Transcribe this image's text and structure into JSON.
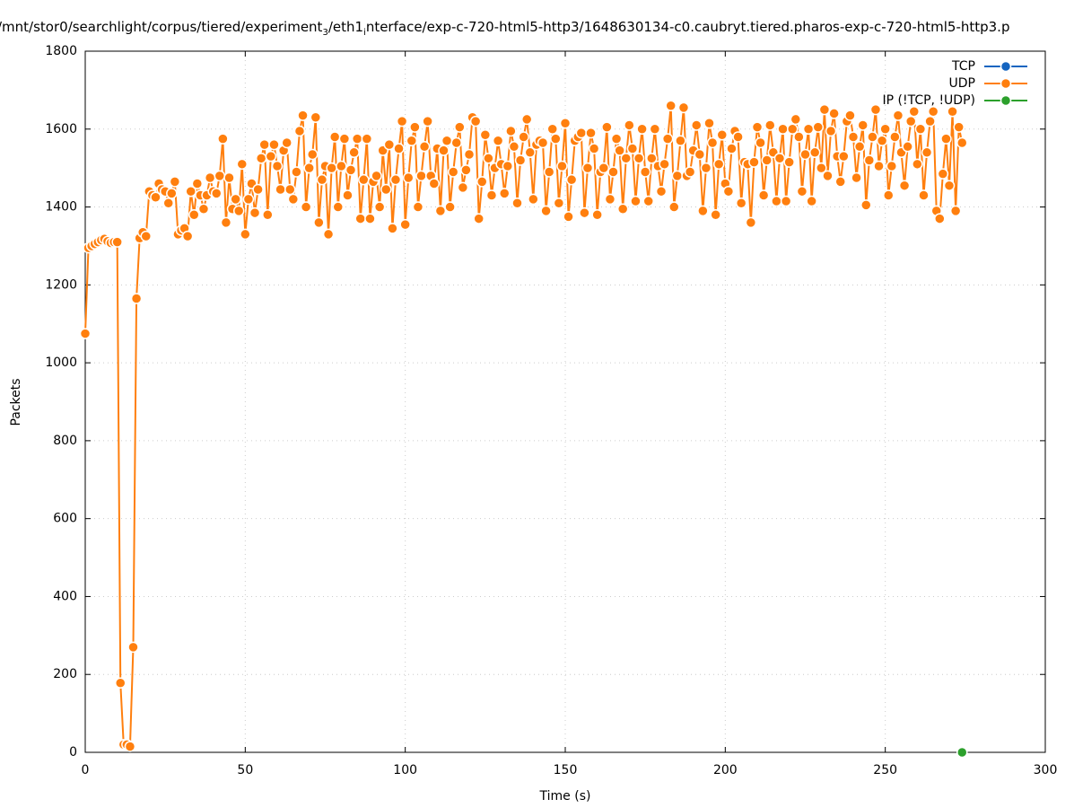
{
  "chart_data": {
    "type": "line",
    "title": [
      {
        "text": "/mnt/stor0/searchlight/corpus/tiered/experiment",
        "sub": false
      },
      {
        "text": "3",
        "sub": true
      },
      {
        "text": "/eth1",
        "sub": false
      },
      {
        "text": "i",
        "sub": true
      },
      {
        "text": "nterface/exp-c-720-html5-http3/1648630134-c0.caubryt.tiered.pharos-exp-c-720-html5-http3.p",
        "sub": false
      }
    ],
    "x_label": "Time (s)",
    "y_label": "Packets",
    "xlim": [
      0,
      300
    ],
    "xticks": [
      0,
      50,
      100,
      150,
      200,
      250,
      300
    ],
    "ylim": [
      0,
      1800
    ],
    "yticks": [
      0,
      200,
      400,
      600,
      800,
      1000,
      1200,
      1400,
      1600,
      1800
    ],
    "grid": true,
    "legend": "upper right",
    "markers": true,
    "series": [
      {
        "name": "TCP",
        "color": "#1565c0",
        "x": [],
        "values": []
      },
      {
        "name": "UDP",
        "color": "#ff7f0e",
        "x": [
          0,
          1,
          2,
          3,
          4,
          5,
          6,
          7,
          8,
          9,
          10,
          11,
          12,
          13,
          14,
          15,
          16,
          17,
          18,
          19,
          20,
          21,
          22,
          23,
          24,
          25,
          26,
          27,
          28,
          29,
          30,
          31,
          32,
          33,
          34,
          35,
          36,
          37,
          38,
          39,
          40,
          41,
          42,
          43,
          44,
          45,
          46,
          47,
          48,
          49,
          50,
          51,
          52,
          53,
          54,
          55,
          56,
          57,
          58,
          59,
          60,
          61,
          62,
          63,
          64,
          65,
          66,
          67,
          68,
          69,
          70,
          71,
          72,
          73,
          74,
          75,
          76,
          77,
          78,
          79,
          80,
          81,
          82,
          83,
          84,
          85,
          86,
          87,
          88,
          89,
          90,
          91,
          92,
          93,
          94,
          95,
          96,
          97,
          98,
          99,
          100,
          101,
          102,
          103,
          104,
          105,
          106,
          107,
          108,
          109,
          110,
          111,
          112,
          113,
          114,
          115,
          116,
          117,
          118,
          119,
          120,
          121,
          122,
          123,
          124,
          125,
          126,
          127,
          128,
          129,
          130,
          131,
          132,
          133,
          134,
          135,
          136,
          137,
          138,
          139,
          140,
          141,
          142,
          143,
          144,
          145,
          146,
          147,
          148,
          149,
          150,
          151,
          152,
          153,
          154,
          155,
          156,
          157,
          158,
          159,
          160,
          161,
          162,
          163,
          164,
          165,
          166,
          167,
          168,
          169,
          170,
          171,
          172,
          173,
          174,
          175,
          176,
          177,
          178,
          179,
          180,
          181,
          182,
          183,
          184,
          185,
          186,
          187,
          188,
          189,
          190,
          191,
          192,
          193,
          194,
          195,
          196,
          197,
          198,
          199,
          200,
          201,
          202,
          203,
          204,
          205,
          206,
          207,
          208,
          209,
          210,
          211,
          212,
          213,
          214,
          215,
          216,
          217,
          218,
          219,
          220,
          221,
          222,
          223,
          224,
          225,
          226,
          227,
          228,
          229,
          230,
          231,
          232,
          233,
          234,
          235,
          236,
          237,
          238,
          239,
          240,
          241,
          242,
          243,
          244,
          245,
          246,
          247,
          248,
          249,
          250,
          251,
          252,
          253,
          254,
          255,
          256,
          257,
          258,
          259,
          260,
          261,
          262,
          263,
          264,
          265,
          266,
          267,
          268,
          269,
          270,
          271,
          272,
          273,
          274
        ],
        "values": [
          1075,
          1295,
          1300,
          1305,
          1310,
          1315,
          1318,
          1312,
          1308,
          1310,
          1310,
          178,
          20,
          20,
          15,
          270,
          1165,
          1320,
          1335,
          1325,
          1440,
          1430,
          1425,
          1460,
          1445,
          1440,
          1410,
          1435,
          1465,
          1330,
          1340,
          1345,
          1325,
          1440,
          1380,
          1460,
          1430,
          1395,
          1430,
          1475,
          1440,
          1435,
          1480,
          1575,
          1360,
          1475,
          1395,
          1420,
          1390,
          1510,
          1330,
          1420,
          1460,
          1385,
          1445,
          1525,
          1560,
          1380,
          1530,
          1560,
          1505,
          1445,
          1545,
          1565,
          1445,
          1420,
          1490,
          1595,
          1635,
          1400,
          1500,
          1535,
          1630,
          1360,
          1470,
          1505,
          1330,
          1500,
          1580,
          1400,
          1505,
          1575,
          1430,
          1495,
          1540,
          1575,
          1370,
          1470,
          1575,
          1370,
          1465,
          1480,
          1400,
          1545,
          1445,
          1560,
          1345,
          1470,
          1550,
          1620,
          1355,
          1475,
          1570,
          1605,
          1400,
          1480,
          1555,
          1620,
          1480,
          1460,
          1550,
          1390,
          1545,
          1570,
          1400,
          1490,
          1565,
          1605,
          1450,
          1495,
          1535,
          1630,
          1620,
          1370,
          1465,
          1585,
          1525,
          1430,
          1500,
          1570,
          1510,
          1435,
          1505,
          1595,
          1555,
          1410,
          1520,
          1580,
          1625,
          1540,
          1420,
          1560,
          1570,
          1565,
          1390,
          1490,
          1600,
          1575,
          1410,
          1505,
          1615,
          1375,
          1470,
          1570,
          1580,
          1590,
          1385,
          1500,
          1590,
          1550,
          1380,
          1490,
          1500,
          1605,
          1420,
          1490,
          1575,
          1545,
          1395,
          1525,
          1610,
          1550,
          1415,
          1525,
          1600,
          1490,
          1415,
          1525,
          1600,
          1505,
          1440,
          1510,
          1575,
          1660,
          1400,
          1480,
          1570,
          1655,
          1480,
          1490,
          1545,
          1610,
          1535,
          1390,
          1500,
          1615,
          1565,
          1380,
          1510,
          1585,
          1460,
          1440,
          1550,
          1595,
          1580,
          1410,
          1515,
          1510,
          1360,
          1515,
          1605,
          1565,
          1430,
          1520,
          1610,
          1540,
          1415,
          1525,
          1600,
          1415,
          1515,
          1600,
          1625,
          1580,
          1440,
          1535,
          1600,
          1415,
          1540,
          1605,
          1500,
          1650,
          1480,
          1595,
          1640,
          1530,
          1465,
          1530,
          1620,
          1635,
          1580,
          1475,
          1555,
          1610,
          1405,
          1520,
          1580,
          1650,
          1505,
          1570,
          1600,
          1430,
          1505,
          1580,
          1635,
          1540,
          1455,
          1555,
          1620,
          1645,
          1510,
          1600,
          1430,
          1540,
          1620,
          1645,
          1390,
          1370,
          1485,
          1575,
          1455,
          1645,
          1390,
          1605,
          1565
        ]
      },
      {
        "name": "IP (!TCP, !UDP)",
        "color": "#2ca02c",
        "x": [
          274
        ],
        "values": [
          0
        ]
      }
    ]
  }
}
